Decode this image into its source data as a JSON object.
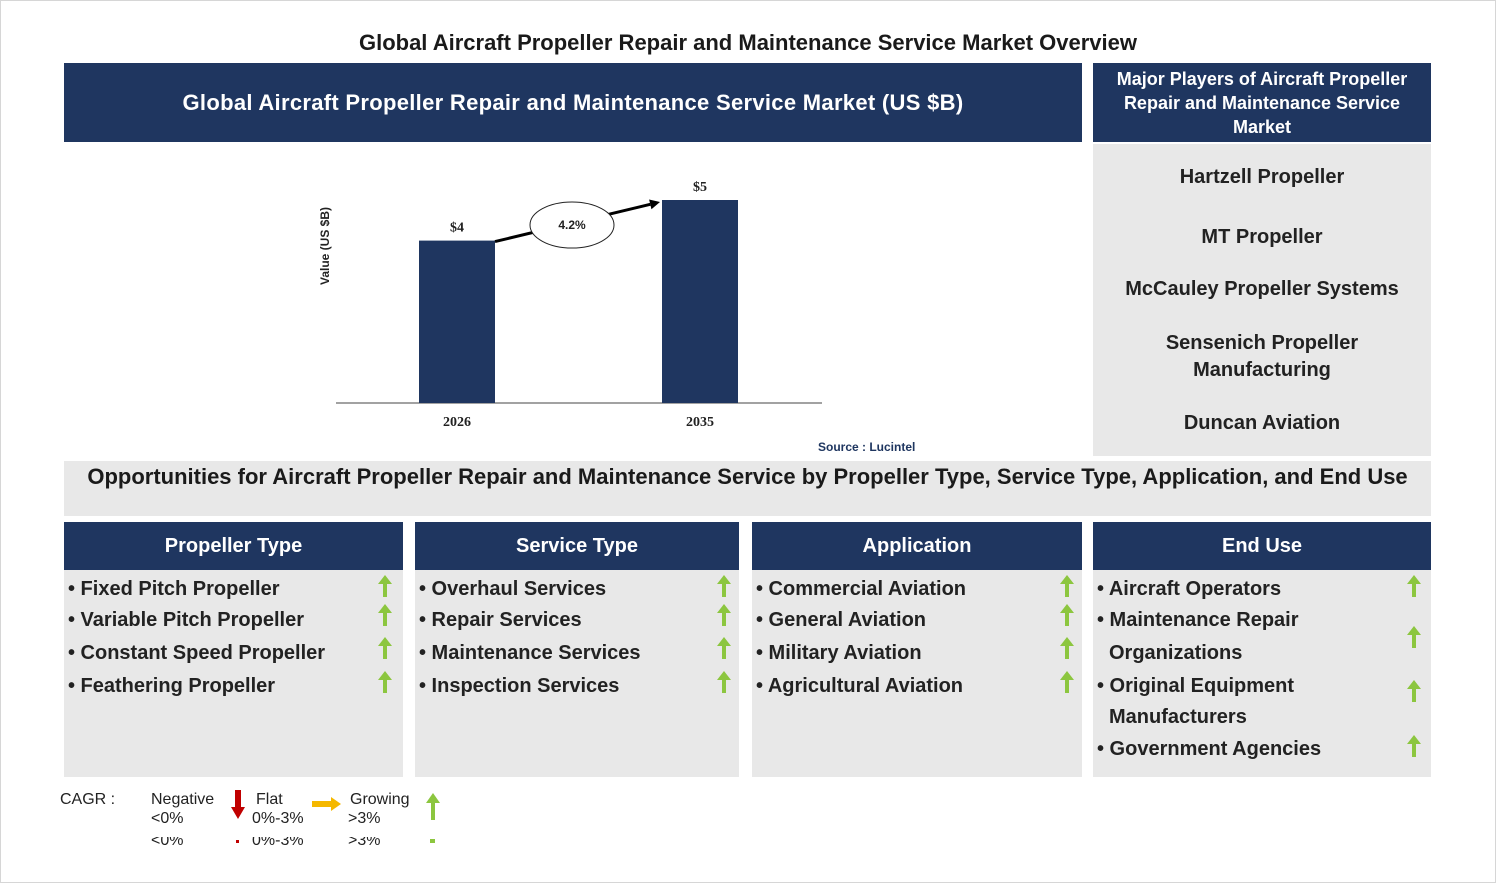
{
  "page_title": "Global Aircraft Propeller Repair and Maintenance Service Market Overview",
  "chart_header": "Global Aircraft Propeller Repair and Maintenance Service Market (US $B)",
  "players": {
    "header": "Major Players of Aircraft Propeller Repair and Maintenance Service Market",
    "items": [
      "Hartzell Propeller",
      "MT Propeller",
      "McCauley Propeller Systems",
      "Sensenich Propeller Manufacturing",
      "Duncan Aviation"
    ]
  },
  "chart_data": {
    "type": "bar",
    "categories": [
      "2026",
      "2035"
    ],
    "values": [
      4,
      5
    ],
    "data_labels": [
      "$4",
      "$5"
    ],
    "ylabel": "Value (US $B)",
    "xlabel": "",
    "cagr_label": "4.2%",
    "colors": {
      "bar": "#1f3660"
    }
  },
  "source": "Source : Lucintel",
  "opportunities_title": "Opportunities for Aircraft Propeller Repair and Maintenance Service by Propeller Type, Service Type, Application, and End Use",
  "segments": [
    {
      "title": "Propeller Type",
      "items": [
        "• Fixed Pitch Propeller",
        "• Variable Pitch Propeller",
        "• Constant Speed Propeller",
        "• Feathering Propeller"
      ],
      "trend": [
        "growing",
        "growing",
        "growing",
        "growing"
      ]
    },
    {
      "title": "Service Type",
      "items": [
        "• Overhaul Services",
        "• Repair Services",
        "• Maintenance Services",
        "• Inspection Services"
      ],
      "trend": [
        "growing",
        "growing",
        "growing",
        "growing"
      ]
    },
    {
      "title": "Application",
      "items": [
        "• Commercial Aviation",
        "• General Aviation",
        "• Military Aviation",
        "• Agricultural Aviation"
      ],
      "trend": [
        "growing",
        "growing",
        "growing",
        "growing"
      ]
    },
    {
      "title": "End Use",
      "items": [
        "• Aircraft Operators",
        "• Maintenance Repair",
        "Organizations",
        "• Original Equipment",
        "Manufacturers",
        "• Government Agencies"
      ],
      "trend": [
        "growing",
        "growing",
        "growing",
        "growing"
      ]
    }
  ],
  "legend": {
    "cagr": "CAGR :",
    "negative": "Negative",
    "negative_range": "<0%",
    "flat": "Flat",
    "flat_range": "0%-3%",
    "growing": "Growing",
    "growing_range": ">3%"
  },
  "colors": {
    "navy": "#1f3660",
    "panel": "#e8e8e8",
    "up_arrow": "#8cc63f",
    "down_arrow": "#c00000",
    "flat_arrow": "#f5b800"
  }
}
